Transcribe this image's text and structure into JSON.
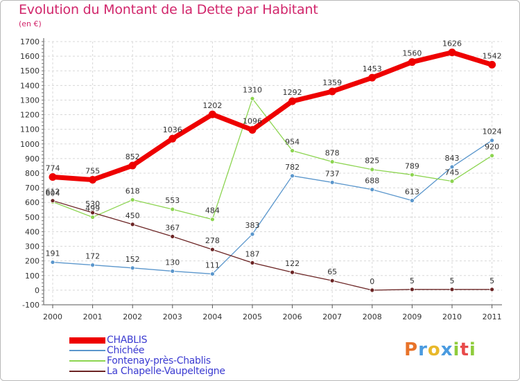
{
  "title": "Evolution du Montant de la Dette par Habitant",
  "unit": "(en €)",
  "logo": {
    "letters": [
      "P",
      "r",
      "o",
      "x",
      "i",
      "t",
      "i"
    ],
    "colors": [
      "#e8732a",
      "#4a9be0",
      "#e8b82a",
      "#4a9be0",
      "#8fcc3c",
      "#e84a4a",
      "#8fcc3c"
    ]
  },
  "chart_data": {
    "type": "line",
    "title": "Evolution du Montant de la Dette par Habitant",
    "ylabel": "(en €)",
    "xlabel": "",
    "ylim": [
      -100,
      1700
    ],
    "yticks": [
      -100,
      0,
      100,
      200,
      300,
      400,
      500,
      600,
      700,
      800,
      900,
      1000,
      1100,
      1200,
      1300,
      1400,
      1500,
      1600,
      1700
    ],
    "categories": [
      "2000",
      "2001",
      "2002",
      "2003",
      "2004",
      "2005",
      "2006",
      "2007",
      "2008",
      "2009",
      "2010",
      "2011"
    ],
    "grid": true,
    "legend_position": "bottom-left",
    "series": [
      {
        "name": "CHABLIS",
        "color": "#ee0000",
        "width": 7,
        "values": [
          774,
          755,
          852,
          1036,
          1202,
          1096,
          1292,
          1359,
          1453,
          1560,
          1626,
          1542
        ]
      },
      {
        "name": "Chichée",
        "color": "#5a96cc",
        "width": 1.3,
        "values": [
          191,
          172,
          152,
          130,
          111,
          383,
          782,
          737,
          688,
          613,
          843,
          1024
        ]
      },
      {
        "name": "Fontenay-près-Chablis",
        "color": "#8cd450",
        "width": 1.3,
        "values": [
          604,
          499,
          618,
          553,
          484,
          1310,
          954,
          878,
          825,
          789,
          745,
          920
        ]
      },
      {
        "name": "La Chapelle-Vaupelteigne",
        "color": "#6b2424",
        "width": 1.3,
        "values": [
          612,
          530,
          450,
          367,
          278,
          187,
          122,
          65,
          0,
          5,
          5,
          5
        ]
      }
    ]
  }
}
